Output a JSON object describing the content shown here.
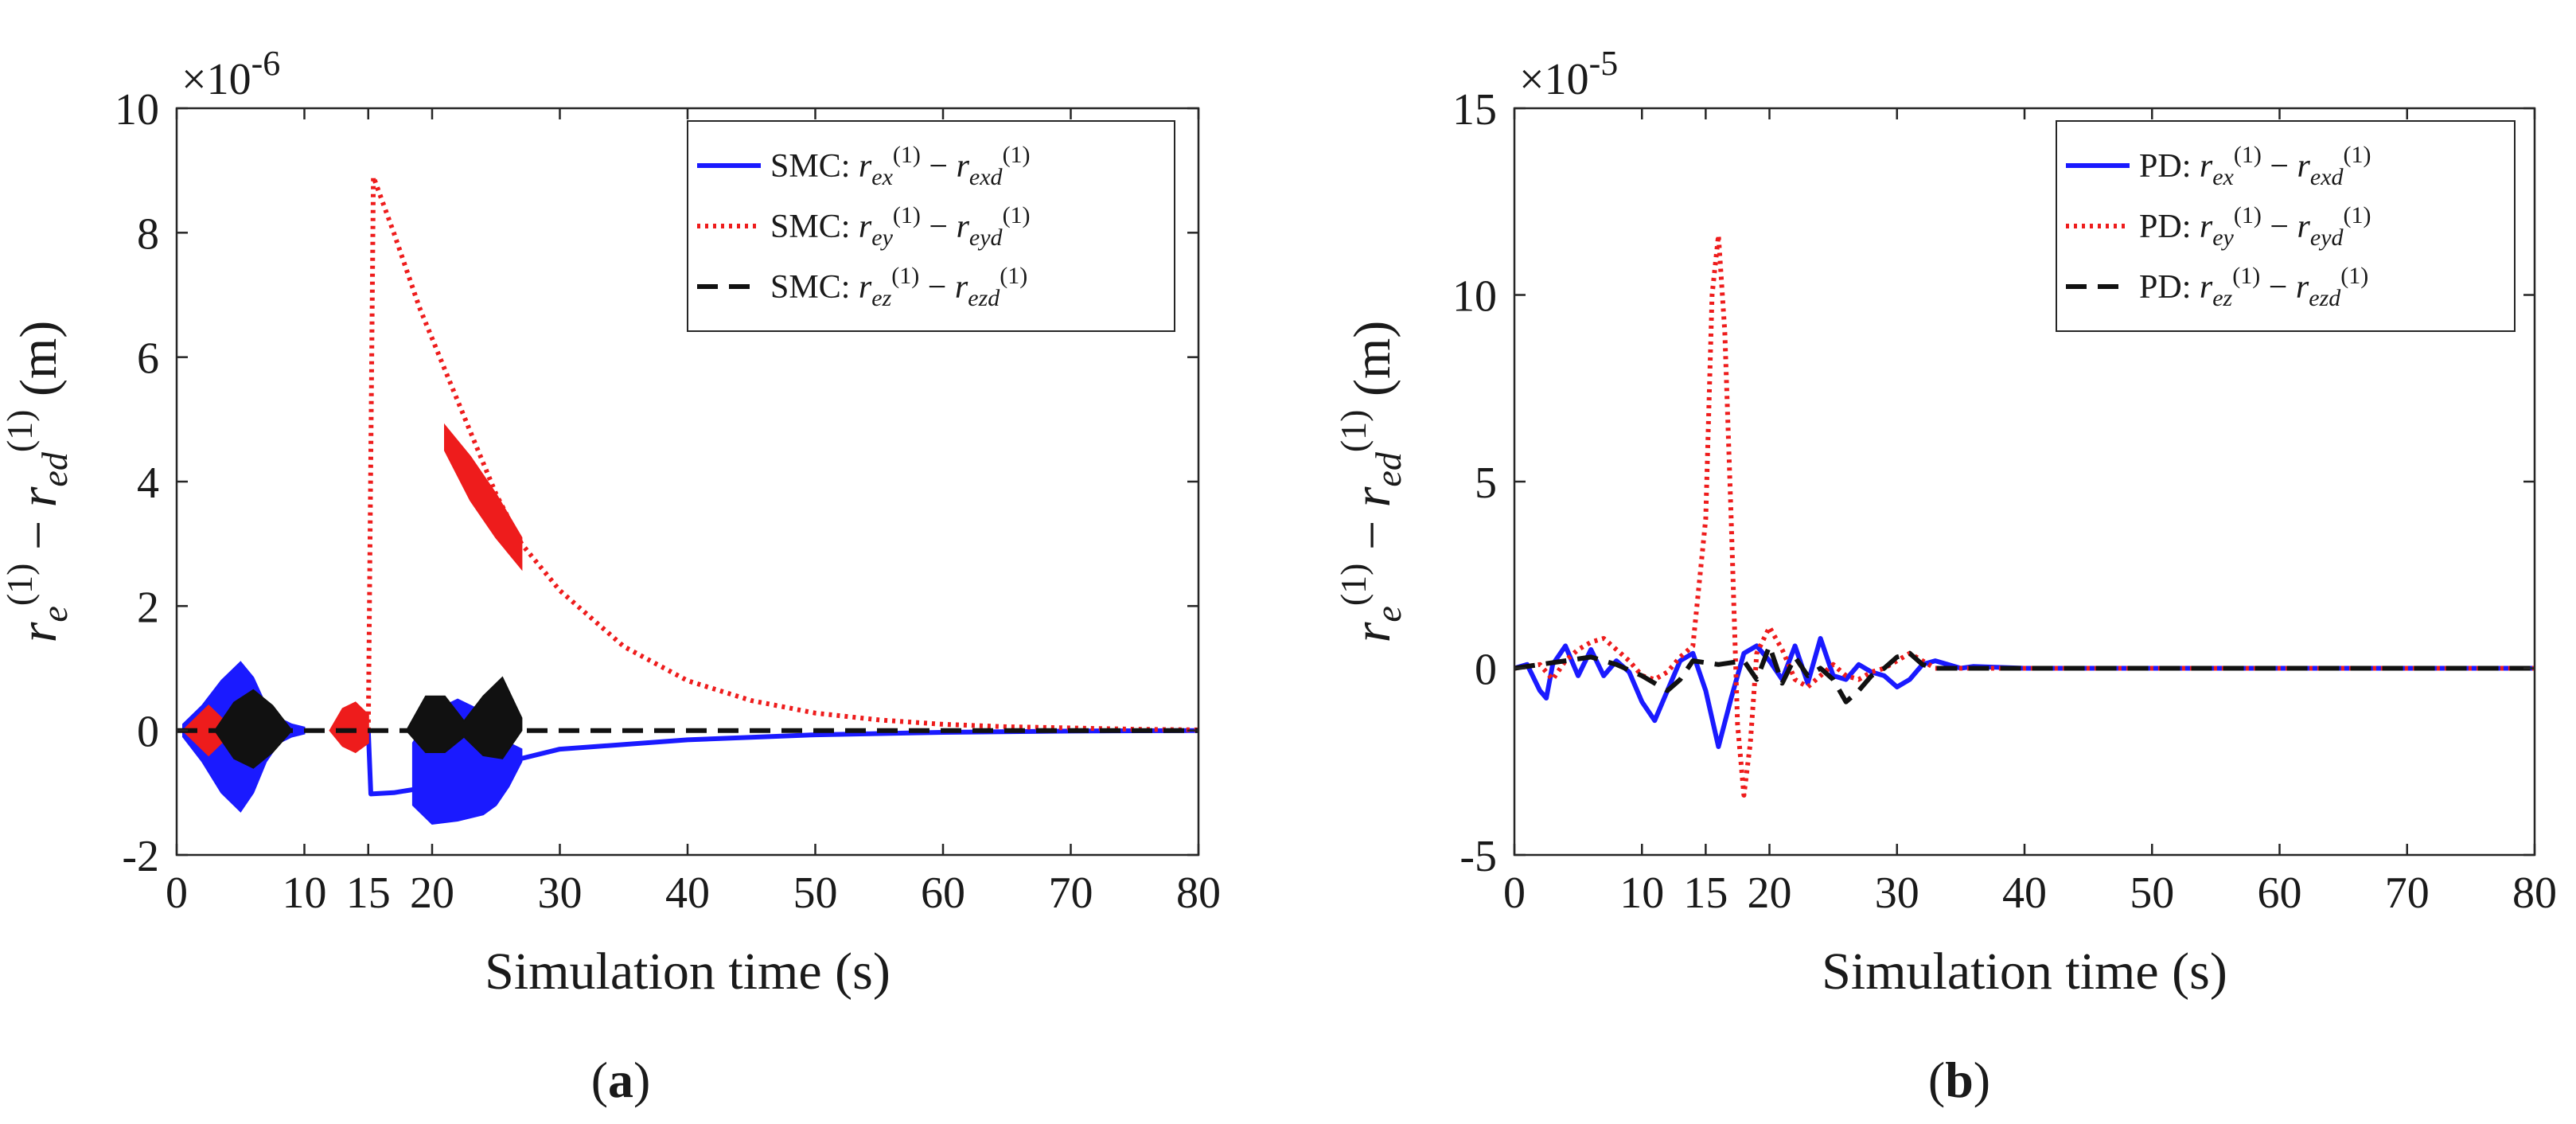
{
  "chart_data": [
    {
      "type": "line",
      "panel_caption": "(a)",
      "xlabel": "Simulation time  (s)",
      "ylabel": "r_e^(1) − r_ed^(1)  (m)",
      "y_multiplier": "×10^-6",
      "xlim": [
        0,
        80
      ],
      "ylim": [
        -2,
        10
      ],
      "x_ticks": [
        "0",
        "10",
        "15",
        "20",
        "30",
        "40",
        "50",
        "60",
        "70",
        "80"
      ],
      "x_tick_values": [
        0,
        10,
        15,
        20,
        30,
        40,
        50,
        60,
        70,
        80
      ],
      "y_ticks": [
        "-2",
        "0",
        "2",
        "4",
        "6",
        "8",
        "10"
      ],
      "y_tick_values": [
        -2,
        0,
        2,
        4,
        6,
        8,
        10
      ],
      "grid": false,
      "legend_position": "top-right",
      "legend": [
        {
          "prefix": "SMC: ",
          "a": "r",
          "as": "ex",
          "b": "r",
          "bs": "exd"
        },
        {
          "prefix": "SMC: ",
          "a": "r",
          "as": "ey",
          "b": "r",
          "bs": "eyd"
        },
        {
          "prefix": "SMC: ",
          "a": "r",
          "as": "ez",
          "b": "r",
          "bs": "ezd"
        }
      ],
      "series": [
        {
          "color": "#1a1aff",
          "dash": "solid",
          "components": [
            {
              "kind": "band",
              "x": [
                0.5,
                2,
                3.5,
                5,
                6,
                7,
                8,
                9,
                10
              ],
              "upper": [
                0.1,
                0.4,
                0.8,
                1.1,
                0.85,
                0.4,
                0.2,
                0.1,
                0.05
              ],
              "lower": [
                -0.1,
                -0.5,
                -1.0,
                -1.3,
                -1.0,
                -0.5,
                -0.2,
                -0.1,
                -0.05
              ]
            },
            {
              "kind": "line",
              "x": [
                15,
                15.2,
                17,
                18.5,
                20,
                25,
                30,
                40,
                50,
                60,
                70,
                80
              ],
              "y": [
                0,
                -1.02,
                -1.0,
                -0.95,
                -0.9,
                -0.55,
                -0.3,
                -0.15,
                -0.07,
                -0.03,
                -0.01,
                0.0
              ]
            },
            {
              "kind": "band",
              "x": [
                18.5,
                20,
                22,
                24,
                25,
                26,
                27
              ],
              "upper": [
                -0.2,
                0.3,
                0.5,
                0.3,
                0.1,
                -0.2,
                -0.3
              ],
              "lower": [
                -1.2,
                -1.5,
                -1.45,
                -1.35,
                -1.2,
                -0.9,
                -0.5
              ]
            }
          ]
        },
        {
          "color": "#ee1c1c",
          "dash": "dotted",
          "components": [
            {
              "kind": "band",
              "x": [
                0.5,
                1.5,
                2.5,
                3.5,
                4.5
              ],
              "upper": [
                0.0,
                0.2,
                0.4,
                0.2,
                0.0
              ],
              "lower": [
                0.0,
                -0.2,
                -0.4,
                -0.2,
                0.0
              ]
            },
            {
              "kind": "band",
              "x": [
                12,
                13,
                14,
                15
              ],
              "upper": [
                0.0,
                0.35,
                0.45,
                0.25
              ],
              "lower": [
                0.0,
                -0.25,
                -0.35,
                -0.2
              ]
            },
            {
              "kind": "line",
              "x": [
                15,
                15.4,
                17,
                19,
                21,
                23,
                25,
                27,
                30,
                35,
                40,
                45,
                50,
                55,
                60,
                65,
                70,
                75,
                80
              ],
              "y": [
                0,
                8.9,
                8.0,
                6.8,
                5.8,
                4.8,
                3.8,
                3.0,
                2.25,
                1.35,
                0.8,
                0.48,
                0.28,
                0.17,
                0.1,
                0.06,
                0.04,
                0.02,
                0.01
              ]
            },
            {
              "kind": "band",
              "x": [
                21,
                23,
                25,
                27
              ],
              "upper": [
                4.9,
                4.4,
                3.8,
                3.1
              ],
              "lower": [
                4.5,
                3.7,
                3.1,
                2.6
              ]
            }
          ]
        },
        {
          "color": "#111111",
          "dash": "dashed",
          "components": [
            {
              "kind": "line",
              "x": [
                0,
                80
              ],
              "y": [
                0,
                0
              ]
            },
            {
              "kind": "band",
              "x": [
                3,
                4.5,
                6,
                7.5,
                9
              ],
              "upper": [
                0.0,
                0.45,
                0.65,
                0.4,
                0.0
              ],
              "lower": [
                0.0,
                -0.45,
                -0.6,
                -0.35,
                0.0
              ]
            },
            {
              "kind": "band",
              "x": [
                18,
                19.5,
                21,
                22.5,
                24,
                25.5,
                27
              ],
              "upper": [
                0.0,
                0.55,
                0.55,
                0.15,
                0.55,
                0.85,
                0.2
              ],
              "lower": [
                0.0,
                -0.35,
                -0.35,
                -0.1,
                -0.4,
                -0.45,
                0.0
              ]
            }
          ]
        }
      ]
    },
    {
      "type": "line",
      "panel_caption": "(b)",
      "xlabel": "Simulation time  (s)",
      "ylabel": "r_e^(1) − r_ed^(1)  (m)",
      "y_multiplier": "×10^-5",
      "xlim": [
        0,
        80
      ],
      "ylim": [
        -5,
        15
      ],
      "x_ticks": [
        "0",
        "10",
        "15",
        "20",
        "30",
        "40",
        "50",
        "60",
        "70",
        "80"
      ],
      "x_tick_values": [
        0,
        10,
        15,
        20,
        30,
        40,
        50,
        60,
        70,
        80
      ],
      "y_ticks": [
        "-5",
        "0",
        "5",
        "10",
        "15"
      ],
      "y_tick_values": [
        -5,
        0,
        5,
        10,
        15
      ],
      "grid": false,
      "legend_position": "top-right",
      "legend": [
        {
          "prefix": "PD: ",
          "a": "r",
          "as": "ex",
          "b": "r",
          "bs": "exd"
        },
        {
          "prefix": "PD: ",
          "a": "r",
          "as": "ey",
          "b": "r",
          "bs": "eyd"
        },
        {
          "prefix": "PD: ",
          "a": "r",
          "as": "ez",
          "b": "r",
          "bs": "ezd"
        }
      ],
      "series": [
        {
          "color": "#1a1aff",
          "dash": "solid",
          "components": [
            {
              "kind": "line",
              "x": [
                0,
                1,
                2,
                2.5,
                3,
                4,
                5,
                6,
                7,
                8,
                9,
                10,
                11,
                12,
                13,
                14,
                15,
                16,
                17,
                18,
                19,
                20,
                21,
                22,
                23,
                24,
                25,
                26,
                27,
                28,
                29,
                30,
                31,
                32,
                33,
                34,
                35,
                36,
                40,
                50,
                60,
                70,
                80
              ],
              "y": [
                0,
                0.1,
                -0.6,
                -0.8,
                0.1,
                0.6,
                -0.2,
                0.5,
                -0.2,
                0.2,
                -0.1,
                -0.9,
                -1.4,
                -0.6,
                0.2,
                0.4,
                -0.6,
                -2.1,
                -0.8,
                0.4,
                0.6,
                0.2,
                -0.3,
                0.6,
                -0.4,
                0.8,
                -0.2,
                -0.3,
                0.1,
                -0.1,
                -0.2,
                -0.5,
                -0.3,
                0.1,
                0.2,
                0.1,
                0.0,
                0.05,
                0,
                0,
                0,
                0,
                0
              ]
            }
          ]
        },
        {
          "color": "#ee1c1c",
          "dash": "dotted",
          "components": [
            {
              "kind": "line",
              "x": [
                0,
                2,
                3,
                4,
                5,
                6,
                7,
                8,
                9,
                10,
                11,
                12,
                13,
                14,
                15,
                15.5,
                16,
                16.5,
                17,
                17.5,
                18,
                18.5,
                19,
                20,
                21,
                22,
                23,
                24,
                25,
                26,
                27,
                28,
                29,
                30,
                31,
                32,
                33,
                36,
                40,
                50,
                60,
                70,
                80
              ],
              "y": [
                0,
                0.1,
                -0.3,
                0.2,
                0.5,
                0.7,
                0.8,
                0.5,
                0.2,
                -0.2,
                -0.3,
                -0.1,
                0.3,
                0.6,
                4.0,
                10.0,
                11.6,
                9.0,
                4.0,
                -1.5,
                -3.4,
                -2.0,
                0.4,
                1.1,
                0.5,
                -0.3,
                -0.5,
                -0.2,
                0.1,
                -0.2,
                -0.3,
                -0.1,
                0.0,
                0.2,
                0.4,
                0.2,
                0.0,
                0.0,
                0,
                0,
                0,
                0,
                0
              ]
            }
          ]
        },
        {
          "color": "#111111",
          "dash": "dashed",
          "components": [
            {
              "kind": "line",
              "x": [
                0,
                2,
                4,
                6,
                8,
                10,
                11,
                12,
                13,
                14,
                16,
                18,
                19,
                20,
                21,
                22,
                23,
                24,
                25,
                26,
                27,
                28,
                29,
                30,
                31,
                32,
                33,
                35,
                40,
                50,
                60,
                70,
                80
              ],
              "y": [
                0,
                0.1,
                0.2,
                0.3,
                0.1,
                -0.2,
                -0.4,
                -0.6,
                -0.3,
                0.2,
                0.1,
                0.2,
                -0.3,
                0.6,
                -0.4,
                0.3,
                -0.2,
                0.0,
                -0.3,
                -0.9,
                -0.6,
                -0.2,
                0.0,
                0.3,
                0.4,
                0.1,
                0.0,
                0.0,
                0,
                0,
                0,
                0,
                0
              ]
            }
          ]
        }
      ]
    }
  ]
}
